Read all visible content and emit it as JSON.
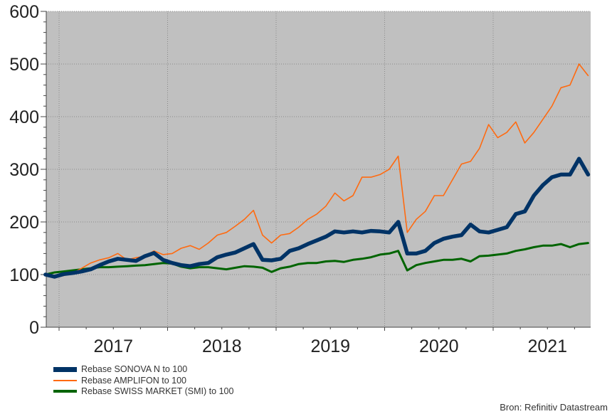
{
  "chart_data": {
    "type": "line",
    "title": "",
    "xlabel": "",
    "ylabel": "",
    "ylim": [
      0,
      600
    ],
    "yticks": [
      "0",
      "100",
      "200",
      "300",
      "400",
      "500",
      "600"
    ],
    "xticks": [
      "2017",
      "2018",
      "2019",
      "2020",
      "2021"
    ],
    "grid": true,
    "legend_position": "bottom-left",
    "background": "#c0c0c0",
    "x": [
      "2016-11",
      "2016-12",
      "2017-01",
      "2017-02",
      "2017-03",
      "2017-04",
      "2017-05",
      "2017-06",
      "2017-07",
      "2017-08",
      "2017-09",
      "2017-10",
      "2017-11",
      "2017-12",
      "2018-01",
      "2018-02",
      "2018-03",
      "2018-04",
      "2018-05",
      "2018-06",
      "2018-07",
      "2018-08",
      "2018-09",
      "2018-10",
      "2018-11",
      "2018-12",
      "2019-01",
      "2019-02",
      "2019-03",
      "2019-04",
      "2019-05",
      "2019-06",
      "2019-07",
      "2019-08",
      "2019-09",
      "2019-10",
      "2019-11",
      "2019-12",
      "2020-01",
      "2020-02",
      "2020-03",
      "2020-04",
      "2020-05",
      "2020-06",
      "2020-07",
      "2020-08",
      "2020-09",
      "2020-10",
      "2020-11",
      "2020-12",
      "2021-01",
      "2021-02",
      "2021-03",
      "2021-04",
      "2021-05",
      "2021-06",
      "2021-07",
      "2021-08",
      "2021-09",
      "2021-10",
      "2021-11"
    ],
    "series": [
      {
        "name": "Rebase SONOVA N to 100",
        "color": "#003366",
        "values": [
          100,
          96,
          101,
          103,
          106,
          110,
          118,
          125,
          130,
          128,
          126,
          135,
          141,
          128,
          122,
          118,
          116,
          120,
          122,
          133,
          138,
          142,
          150,
          158,
          128,
          127,
          130,
          145,
          150,
          158,
          165,
          172,
          182,
          180,
          182,
          180,
          183,
          182,
          180,
          200,
          140,
          140,
          145,
          160,
          168,
          172,
          175,
          195,
          182,
          180,
          185,
          190,
          215,
          220,
          250,
          270,
          285,
          290,
          290,
          320,
          290
        ]
      },
      {
        "name": "Rebase AMPLIFON to 100",
        "color": "#ff6a10",
        "values": [
          100,
          95,
          98,
          103,
          112,
          122,
          128,
          132,
          140,
          128,
          132,
          135,
          145,
          138,
          140,
          150,
          155,
          148,
          160,
          175,
          180,
          192,
          205,
          222,
          175,
          160,
          175,
          178,
          190,
          205,
          215,
          230,
          255,
          240,
          250,
          285,
          285,
          290,
          300,
          325,
          180,
          205,
          220,
          250,
          250,
          280,
          310,
          315,
          340,
          385,
          360,
          370,
          390,
          350,
          370,
          395,
          420,
          455,
          460,
          500,
          478
        ]
      },
      {
        "name": "Rebase SWISS MARKET (SMI) to 100",
        "color": "#006400",
        "values": [
          100,
          104,
          106,
          108,
          110,
          112,
          114,
          114,
          115,
          116,
          117,
          118,
          120,
          122,
          121,
          115,
          112,
          114,
          114,
          112,
          110,
          113,
          116,
          115,
          113,
          105,
          112,
          115,
          120,
          122,
          122,
          125,
          126,
          124,
          128,
          130,
          133,
          138,
          140,
          145,
          108,
          118,
          122,
          125,
          128,
          128,
          130,
          125,
          135,
          136,
          138,
          140,
          145,
          148,
          152,
          155,
          155,
          158,
          152,
          158,
          160
        ]
      }
    ]
  },
  "source": "Bron: Refinitiv Datastream"
}
